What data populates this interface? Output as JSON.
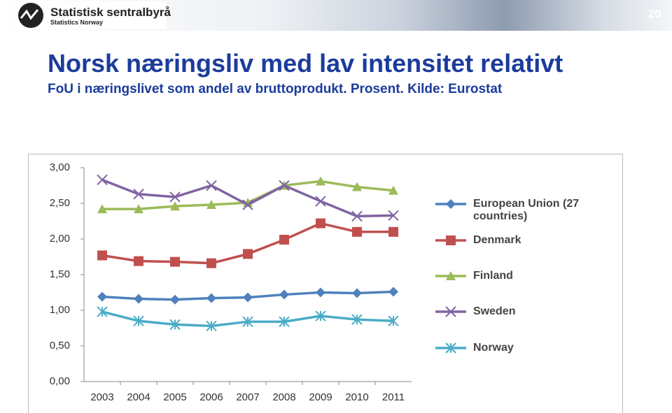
{
  "slide": {
    "logo_name": "Statistisk sentralbyrå",
    "logo_sub": "Statistics Norway",
    "page_number": "20",
    "title": "Norsk næringsliv med lav intensitet relativt",
    "subtitle": "FoU i næringslivet som andel av bruttoprodukt. Prosent. Kilde: Eurostat"
  },
  "chart_data": {
    "type": "line",
    "categories": [
      "2003",
      "2004",
      "2005",
      "2006",
      "2007",
      "2008",
      "2009",
      "2010",
      "2011"
    ],
    "ylim": [
      0,
      3
    ],
    "yticks": [
      {
        "value": 0,
        "label": "0,00"
      },
      {
        "value": 0.5,
        "label": "0,50"
      },
      {
        "value": 1,
        "label": "1,00"
      },
      {
        "value": 1.5,
        "label": "1,50"
      },
      {
        "value": 2,
        "label": "2,00"
      },
      {
        "value": 2.5,
        "label": "2,50"
      },
      {
        "value": 3,
        "label": "3,00"
      }
    ],
    "legend": "right",
    "series": [
      {
        "name": "European Union (27 countries)",
        "color": "#4f81bd",
        "marker": "diamond",
        "values": [
          1.19,
          1.16,
          1.15,
          1.17,
          1.18,
          1.22,
          1.25,
          1.24,
          1.26
        ]
      },
      {
        "name": "Denmark",
        "color": "#c0504d",
        "marker": "square",
        "values": [
          1.77,
          1.69,
          1.68,
          1.66,
          1.79,
          1.99,
          2.22,
          2.1,
          2.1
        ]
      },
      {
        "name": "Finland",
        "color": "#9bbb59",
        "marker": "triangle",
        "values": [
          2.42,
          2.42,
          2.46,
          2.48,
          2.51,
          2.75,
          2.81,
          2.73,
          2.68
        ]
      },
      {
        "name": "Sweden",
        "color": "#8064a2",
        "marker": "x",
        "values": [
          2.83,
          2.63,
          2.59,
          2.75,
          2.48,
          2.75,
          2.53,
          2.32,
          2.33
        ]
      },
      {
        "name": "Norway",
        "color": "#4bacc6",
        "marker": "star",
        "values": [
          0.98,
          0.85,
          0.8,
          0.78,
          0.84,
          0.84,
          0.92,
          0.87,
          0.85
        ]
      }
    ]
  }
}
